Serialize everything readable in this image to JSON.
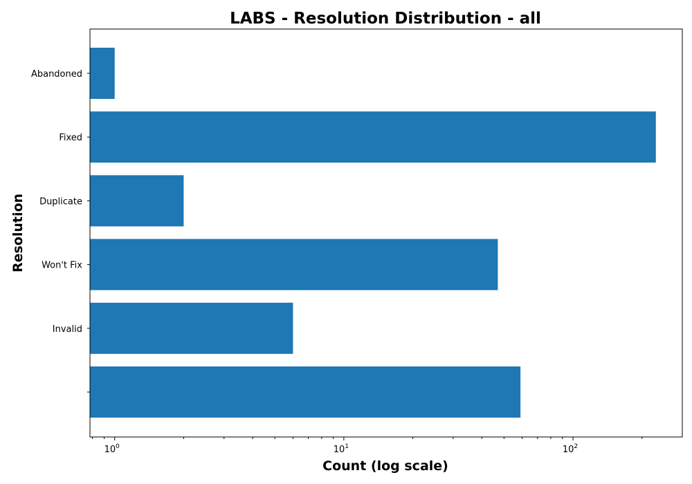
{
  "chart_data": {
    "type": "bar",
    "orientation": "horizontal",
    "title": "LABS - Resolution Distribution - all",
    "xlabel": "Count (log scale)",
    "ylabel": "Resolution",
    "x_scale": "log",
    "xlim": [
      0.78,
      300
    ],
    "x_ticks": [
      {
        "value": 1,
        "base": "10",
        "exp": "0"
      },
      {
        "value": 10,
        "base": "10",
        "exp": "1"
      },
      {
        "value": 100,
        "base": "10",
        "exp": "2"
      }
    ],
    "categories": [
      "Abandoned",
      "Fixed",
      "Duplicate",
      "Won't Fix",
      "Invalid",
      ""
    ],
    "values": [
      1,
      230,
      2,
      47,
      6,
      59
    ],
    "bar_color": "#1f77b4",
    "grid": false,
    "legend": "none"
  }
}
